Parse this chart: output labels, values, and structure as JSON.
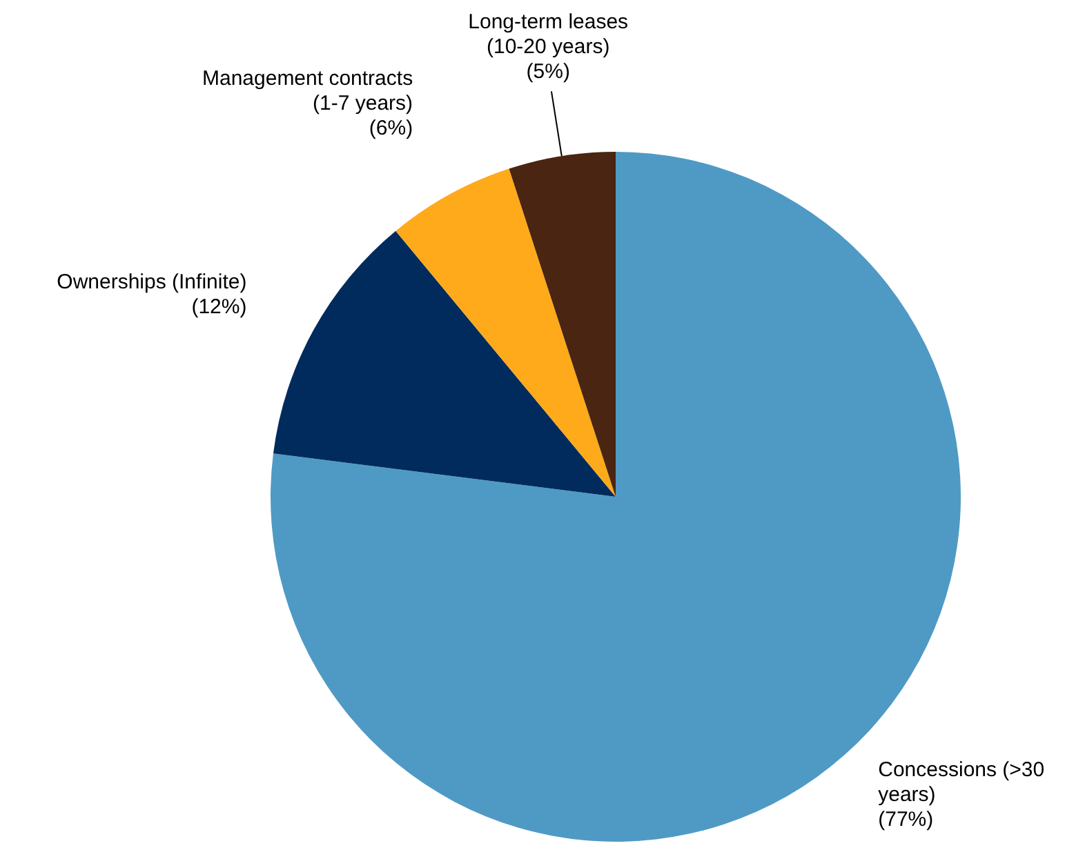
{
  "chart_data": {
    "type": "pie",
    "categories": [
      "Concessions (>30 years)",
      "Ownerships (Infinite)",
      "Management contracts (1-7 years)",
      "Long-term leases (10-20 years)"
    ],
    "values": [
      77,
      12,
      6,
      5
    ],
    "colors": [
      "#4f9ac4",
      "#002b5c",
      "#ffaa1a",
      "#4a2511"
    ],
    "value_labels": [
      "(77%)",
      "(12%)",
      "(6%)",
      "(5%)"
    ]
  }
}
